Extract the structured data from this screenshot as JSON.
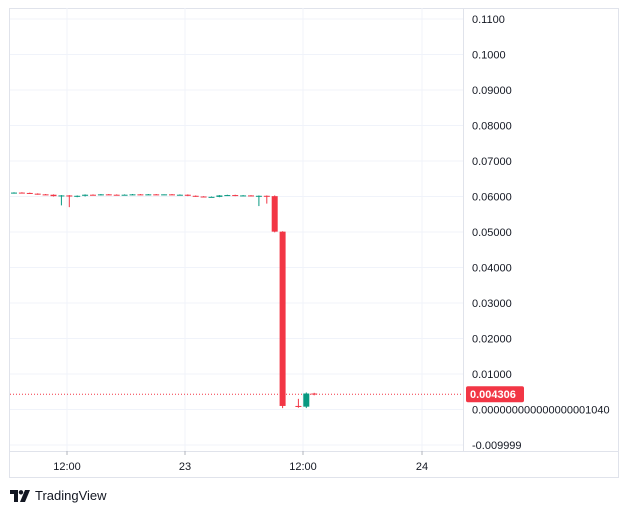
{
  "brand": {
    "name": "TradingView",
    "icon": "tradingview-logo-icon"
  },
  "colors": {
    "up": "#089981",
    "down": "#F23645",
    "grid": "#F0F3FA",
    "axis_text": "#131722"
  },
  "price_label": {
    "text": "0.004306",
    "value": 0.004306
  },
  "chart_data": {
    "type": "candlestick",
    "y_ticks": [
      "0.1100",
      "0.1000",
      "0.09000",
      "0.08000",
      "0.07000",
      "0.06000",
      "0.05000",
      "0.04000",
      "0.03000",
      "0.02000",
      "0.01000",
      "0.000000000000000001040",
      "-0.009999"
    ],
    "y_tick_values": [
      0.11,
      0.1,
      0.09,
      0.08,
      0.07,
      0.06,
      0.05,
      0.04,
      0.03,
      0.02,
      0.01,
      1.04e-18,
      -0.009999
    ],
    "x_ticks": [
      "12:00",
      "23",
      "12:00",
      "24"
    ],
    "ylim": [
      -0.012,
      0.115
    ],
    "last_price": 0.004306,
    "candles": [
      {
        "o": 0.061,
        "h": 0.0612,
        "l": 0.0608,
        "c": 0.0611
      },
      {
        "o": 0.0611,
        "h": 0.0612,
        "l": 0.0609,
        "c": 0.061
      },
      {
        "o": 0.061,
        "h": 0.0611,
        "l": 0.0607,
        "c": 0.0608
      },
      {
        "o": 0.0608,
        "h": 0.0609,
        "l": 0.0605,
        "c": 0.0606
      },
      {
        "o": 0.0606,
        "h": 0.0607,
        "l": 0.0604,
        "c": 0.0605
      },
      {
        "o": 0.0605,
        "h": 0.0606,
        "l": 0.06,
        "c": 0.0601
      },
      {
        "o": 0.0601,
        "h": 0.0604,
        "l": 0.0575,
        "c": 0.0603
      },
      {
        "o": 0.0603,
        "h": 0.0604,
        "l": 0.057,
        "c": 0.06
      },
      {
        "o": 0.06,
        "h": 0.0603,
        "l": 0.0598,
        "c": 0.0602
      },
      {
        "o": 0.0602,
        "h": 0.0606,
        "l": 0.06,
        "c": 0.0605
      },
      {
        "o": 0.0605,
        "h": 0.0606,
        "l": 0.0603,
        "c": 0.0604
      },
      {
        "o": 0.0604,
        "h": 0.0607,
        "l": 0.0603,
        "c": 0.0606
      },
      {
        "o": 0.0606,
        "h": 0.0607,
        "l": 0.0604,
        "c": 0.0605
      },
      {
        "o": 0.0605,
        "h": 0.0606,
        "l": 0.0603,
        "c": 0.0604
      },
      {
        "o": 0.0604,
        "h": 0.0606,
        "l": 0.0603,
        "c": 0.0605
      },
      {
        "o": 0.0605,
        "h": 0.0607,
        "l": 0.0604,
        "c": 0.0606
      },
      {
        "o": 0.0606,
        "h": 0.0607,
        "l": 0.0604,
        "c": 0.0605
      },
      {
        "o": 0.0605,
        "h": 0.0607,
        "l": 0.0604,
        "c": 0.0606
      },
      {
        "o": 0.0606,
        "h": 0.0607,
        "l": 0.0604,
        "c": 0.0605
      },
      {
        "o": 0.0605,
        "h": 0.0606,
        "l": 0.0604,
        "c": 0.0606
      },
      {
        "o": 0.0606,
        "h": 0.0607,
        "l": 0.0605,
        "c": 0.0605
      },
      {
        "o": 0.0605,
        "h": 0.0606,
        "l": 0.0604,
        "c": 0.0605
      },
      {
        "o": 0.0605,
        "h": 0.0606,
        "l": 0.0601,
        "c": 0.0602
      },
      {
        "o": 0.0602,
        "h": 0.0603,
        "l": 0.0599,
        "c": 0.06
      },
      {
        "o": 0.06,
        "h": 0.0601,
        "l": 0.0598,
        "c": 0.0599
      },
      {
        "o": 0.0599,
        "h": 0.06,
        "l": 0.0598,
        "c": 0.0599
      },
      {
        "o": 0.0599,
        "h": 0.0604,
        "l": 0.0598,
        "c": 0.0603
      },
      {
        "o": 0.0603,
        "h": 0.0605,
        "l": 0.0602,
        "c": 0.0604
      },
      {
        "o": 0.0604,
        "h": 0.0605,
        "l": 0.0601,
        "c": 0.0602
      },
      {
        "o": 0.0602,
        "h": 0.0604,
        "l": 0.0601,
        "c": 0.0603
      },
      {
        "o": 0.0603,
        "h": 0.0604,
        "l": 0.06,
        "c": 0.0601
      },
      {
        "o": 0.0601,
        "h": 0.0603,
        "l": 0.0573,
        "c": 0.0602
      },
      {
        "o": 0.0602,
        "h": 0.0603,
        "l": 0.058,
        "c": 0.0601
      },
      {
        "o": 0.0601,
        "h": 0.0603,
        "l": 0.0499,
        "c": 0.0501
      },
      {
        "o": 0.0501,
        "h": 0.0502,
        "l": 0.0004,
        "c": 0.001
      },
      {
        "o": 0.001,
        "h": 0.003,
        "l": 0.0005,
        "c": 0.0008
      },
      {
        "o": 0.0008,
        "h": 0.0048,
        "l": 0.0004,
        "c": 0.0045
      },
      {
        "o": 0.0045,
        "h": 0.0047,
        "l": 0.004,
        "c": 0.0043
      }
    ],
    "candle_index_positions": [
      0,
      1,
      2,
      3,
      4,
      5,
      6,
      7,
      8,
      9,
      10,
      11,
      12,
      13,
      14,
      15,
      16,
      17,
      18,
      19,
      20,
      21,
      22,
      23,
      24,
      25,
      26,
      27,
      28,
      29,
      30,
      31,
      32,
      33,
      34,
      36,
      37,
      38
    ]
  }
}
